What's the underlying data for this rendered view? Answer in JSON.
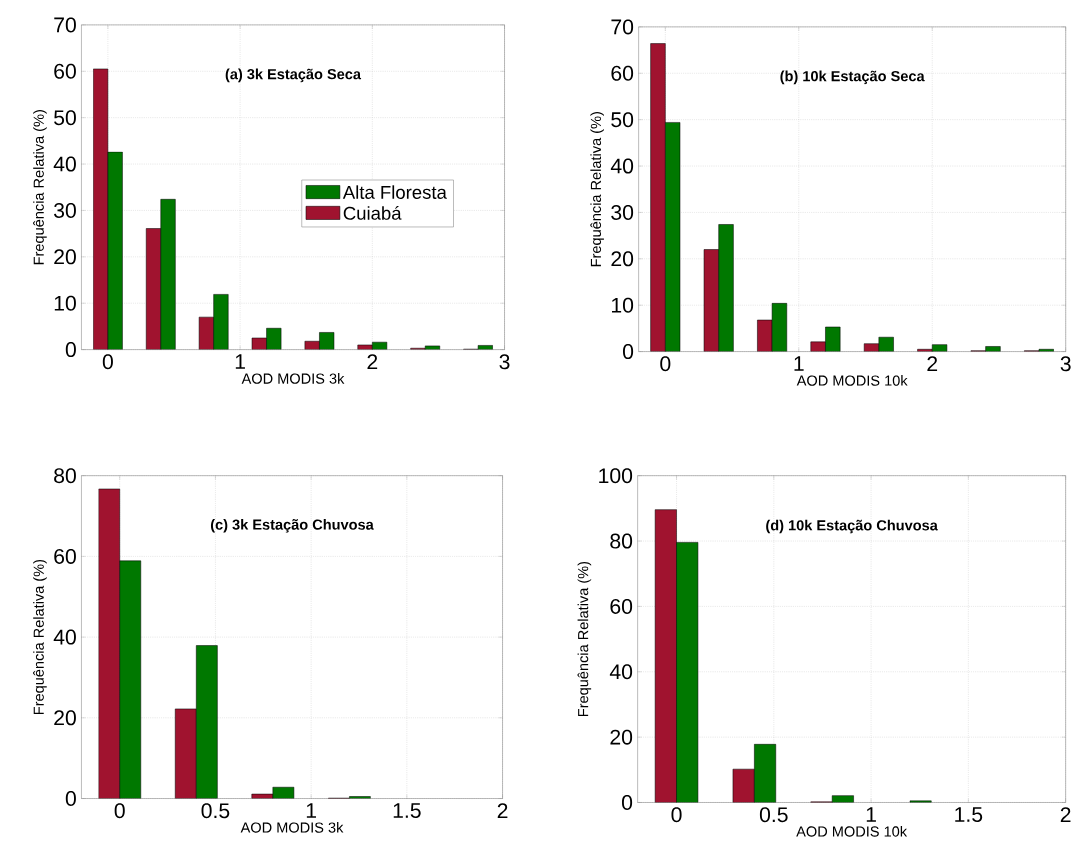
{
  "chart_data": [
    {
      "type": "bar",
      "title": "(a) 3k Estação Seca",
      "xlabel": "AOD MODIS 3k",
      "ylabel": "Frequência Relativa (%)",
      "x": [
        0,
        0.4,
        0.8,
        1.2,
        1.6,
        2.0,
        2.4,
        2.8
      ],
      "series": [
        {
          "name": "Cuiabá",
          "color": "#a0132f",
          "values": [
            60.5,
            26.1,
            7.0,
            2.5,
            1.8,
            1.0,
            0.3,
            0.1
          ]
        },
        {
          "name": "Alta Floresta",
          "color": "#007800",
          "values": [
            42.6,
            32.4,
            11.9,
            4.6,
            3.7,
            1.6,
            0.8,
            0.9
          ]
        }
      ],
      "xlim": [
        -0.2,
        3
      ],
      "ylim": [
        0,
        70
      ],
      "xticks": [
        0,
        1,
        2,
        3
      ],
      "yticks": [
        0,
        10,
        20,
        30,
        40,
        50,
        60,
        70
      ],
      "grid": true,
      "legend": "right"
    },
    {
      "type": "bar",
      "title": "(b) 10k Estação Seca",
      "xlabel": "AOD MODIS 10k",
      "ylabel": "Frequência Relativa (%)",
      "x": [
        0,
        0.4,
        0.8,
        1.2,
        1.6,
        2.0,
        2.4,
        2.8
      ],
      "series": [
        {
          "color": "#a0132f",
          "values": [
            66.4,
            22.0,
            6.8,
            2.1,
            1.7,
            0.5,
            0.2,
            0.2
          ]
        },
        {
          "color": "#007800",
          "values": [
            49.4,
            27.4,
            10.4,
            5.3,
            3.1,
            1.5,
            1.1,
            0.5
          ]
        }
      ],
      "xlim": [
        -0.2,
        3
      ],
      "ylim": [
        0,
        70
      ],
      "xticks": [
        0,
        1,
        2,
        3
      ],
      "yticks": [
        0,
        10,
        20,
        30,
        40,
        50,
        60,
        70
      ],
      "grid": true
    },
    {
      "type": "bar",
      "title": "(c) 3k Estação Chuvosa",
      "xlabel": "AOD MODIS 3k",
      "ylabel": "Frequência Relativa (%)",
      "x": [
        0,
        0.4,
        0.8,
        1.2
      ],
      "series": [
        {
          "color": "#a0132f",
          "values": [
            76.7,
            22.2,
            1.1,
            0.1
          ]
        },
        {
          "color": "#007800",
          "values": [
            58.9,
            37.9,
            2.8,
            0.5
          ]
        }
      ],
      "xlim": [
        -0.2,
        2
      ],
      "ylim": [
        0,
        80
      ],
      "xticks": [
        0,
        0.5,
        1,
        1.5,
        2
      ],
      "yticks": [
        0,
        20,
        40,
        60,
        80
      ],
      "grid": true
    },
    {
      "type": "bar",
      "title": "(d) 10k Estação Chuvosa",
      "xlabel": "AOD MODIS 10k",
      "ylabel": "Frequência Relativa (%)",
      "x": [
        0,
        0.4,
        0.8,
        1.2
      ],
      "series": [
        {
          "color": "#a0132f",
          "values": [
            89.6,
            10.2,
            0.2,
            null
          ]
        },
        {
          "color": "#007800",
          "values": [
            79.6,
            17.8,
            2.1,
            0.5
          ]
        }
      ],
      "xlim": [
        -0.2,
        2
      ],
      "ylim": [
        0,
        100
      ],
      "xticks": [
        0,
        0.5,
        1,
        1.5,
        2
      ],
      "yticks": [
        0,
        20,
        40,
        60,
        80,
        100
      ],
      "grid": true
    }
  ]
}
